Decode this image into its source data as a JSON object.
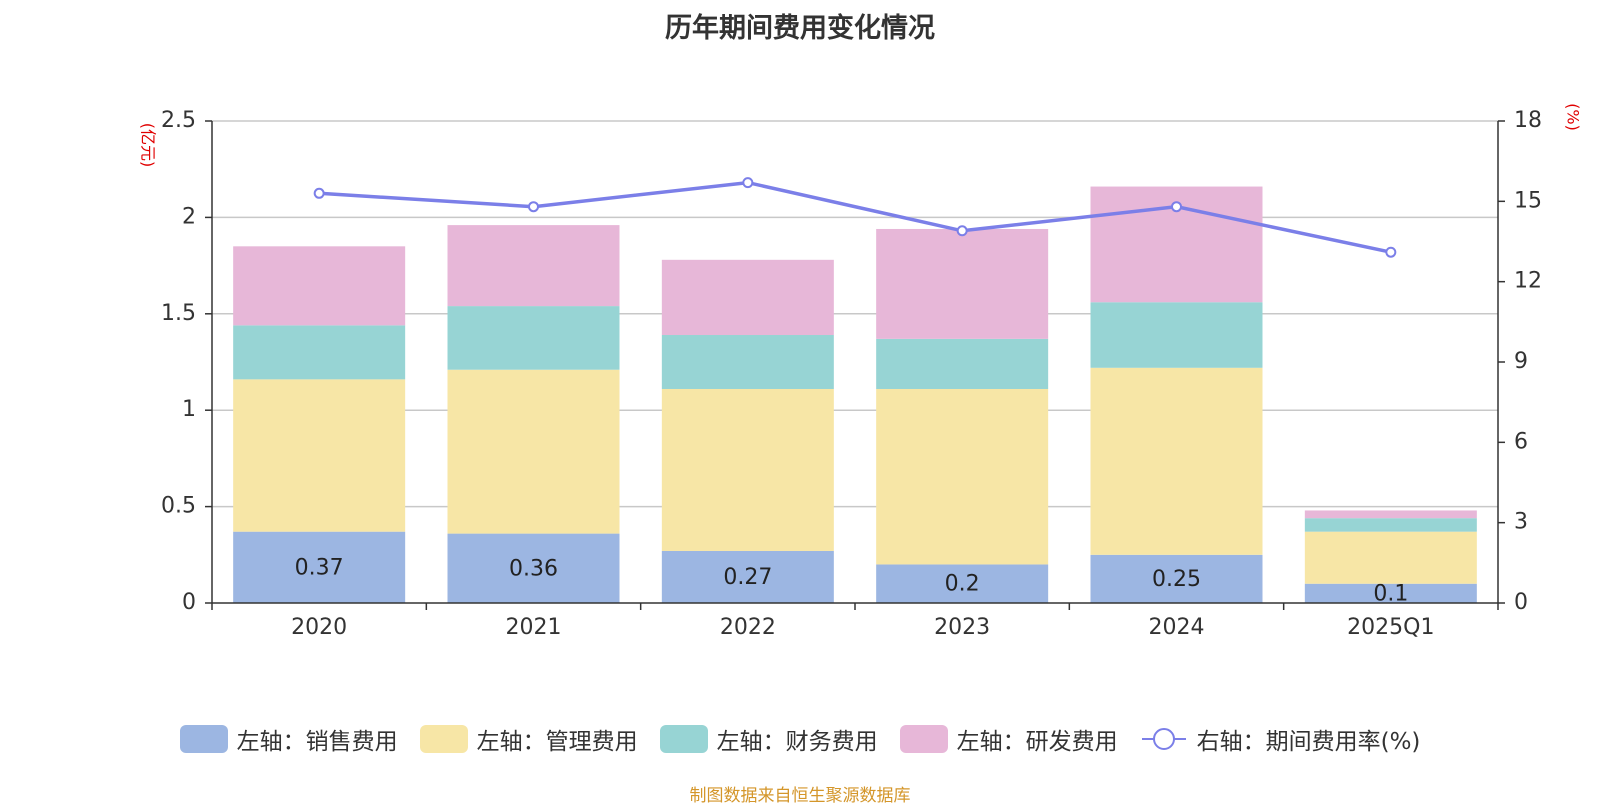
{
  "title": "历年期间费用变化情况",
  "source_note": "制图数据来自恒生聚源数据库",
  "colors": {
    "sales": "#9cb6e2",
    "admin": "#f7e6a6",
    "finance": "#97d4d4",
    "rnd": "#e7b7d8",
    "rate_line": "#7b7fe8",
    "unit_label": "#e00000",
    "source_text": "#d4962a"
  },
  "chart_data": {
    "type": "bar",
    "stacked": true,
    "categories": [
      "2020",
      "2021",
      "2022",
      "2023",
      "2024",
      "2025Q1"
    ],
    "left_axis": {
      "unit": "(亿元)",
      "ylim": [
        0,
        2.5
      ],
      "ticks": [
        "0",
        "0.5",
        "1",
        "1.5",
        "2",
        "2.5"
      ]
    },
    "right_axis": {
      "unit": "(%)",
      "ylim": [
        0,
        18
      ],
      "ticks": [
        "0",
        "3",
        "6",
        "9",
        "12",
        "15",
        "18"
      ]
    },
    "series": [
      {
        "name": "左轴：销售费用",
        "axis": "left",
        "color": "#9cb6e2",
        "values": [
          0.37,
          0.36,
          0.27,
          0.2,
          0.25,
          0.1
        ],
        "labels": [
          "0.37",
          "0.36",
          "0.27",
          "0.2",
          "0.25",
          "0.1"
        ]
      },
      {
        "name": "左轴：管理费用",
        "axis": "left",
        "color": "#f7e6a6",
        "values": [
          0.79,
          0.85,
          0.84,
          0.91,
          0.97,
          0.27
        ]
      },
      {
        "name": "左轴：财务费用",
        "axis": "left",
        "color": "#97d4d4",
        "values": [
          0.28,
          0.33,
          0.28,
          0.26,
          0.34,
          0.07
        ]
      },
      {
        "name": "左轴：研发费用",
        "axis": "left",
        "color": "#e7b7d8",
        "values": [
          0.41,
          0.42,
          0.39,
          0.57,
          0.6,
          0.04
        ]
      },
      {
        "name": "右轴：期间费用率(%)",
        "axis": "right",
        "type": "line",
        "color": "#7b7fe8",
        "values": [
          15.3,
          14.8,
          15.7,
          13.9,
          14.8,
          13.1
        ]
      }
    ],
    "grid": true,
    "legend_position": "bottom"
  }
}
